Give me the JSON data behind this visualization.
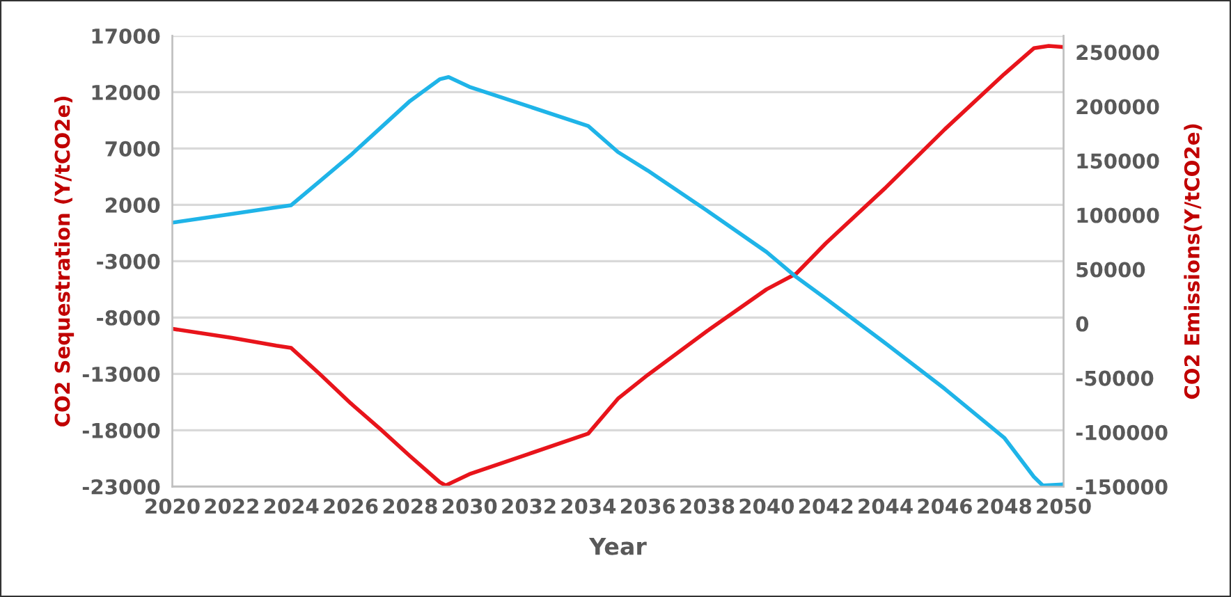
{
  "chart_data": {
    "type": "line",
    "xlabel": "Year",
    "ylabel": "CO2 Sequestration (Y/tCO2e)",
    "y2label": "CO2 Emissions(Y/tCO2e)",
    "xlim": [
      2020,
      2050
    ],
    "xticks": [
      2020,
      2022,
      2024,
      2026,
      2028,
      2030,
      2032,
      2034,
      2036,
      2038,
      2040,
      2042,
      2044,
      2046,
      2048,
      2050
    ],
    "ylim": [
      -23000,
      17000
    ],
    "yticks": [
      -23000,
      -18000,
      -13000,
      -8000,
      -3000,
      2000,
      7000,
      12000,
      17000
    ],
    "y2lim": [
      -150000,
      265000
    ],
    "y2ticks": [
      -150000,
      -100000,
      -50000,
      0,
      50000,
      100000,
      150000,
      200000,
      250000
    ],
    "grid": "y",
    "marker": "none",
    "line_style": "solid",
    "series": [
      {
        "color": "#e8141b",
        "x": [
          2020,
          2022,
          2023.5,
          2024,
          2025,
          2026,
          2027,
          2028,
          2029,
          2029.2,
          2030,
          2032,
          2034,
          2035,
          2036,
          2038,
          2040,
          2041,
          2042,
          2044,
          2046,
          2048,
          2049,
          2049.5,
          2050
        ],
        "values": [
          -9000,
          -9800,
          -10500,
          -10700,
          -13100,
          -15600,
          -17900,
          -20300,
          -22600,
          -22900,
          -21900,
          -20100,
          -18300,
          -15200,
          -13100,
          -9200,
          -5500,
          -4100,
          -1400,
          3500,
          8700,
          13600,
          15900,
          16100,
          16000
        ]
      },
      {
        "color": "#1fb4e8",
        "axis": "y2",
        "x": [
          2020,
          2022,
          2023.5,
          2024,
          2025,
          2026,
          2027,
          2028,
          2029,
          2029.3,
          2030,
          2032,
          2034,
          2035,
          2036,
          2038,
          2040,
          2041,
          2042,
          2044,
          2046,
          2048,
          2049,
          2049.3,
          2050
        ],
        "values": [
          93000,
          101000,
          107000,
          109000,
          132000,
          155000,
          180000,
          205000,
          225000,
          227000,
          218000,
          200000,
          182000,
          158000,
          141000,
          104000,
          66000,
          43000,
          23000,
          -18000,
          -60000,
          -105000,
          -141000,
          -149000,
          -148000
        ]
      }
    ]
  }
}
